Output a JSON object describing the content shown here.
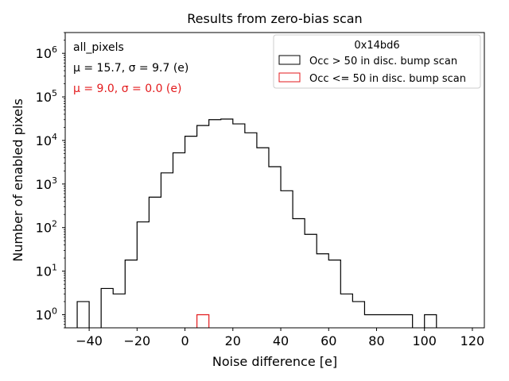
{
  "chart_data": {
    "type": "histogram",
    "title": "Results from zero-bias scan",
    "xlabel": "Noise difference [e]",
    "ylabel": "Number of enabled pixels",
    "xlim": [
      -50,
      125
    ],
    "ylim": [
      0.5,
      3000000
    ],
    "yscale": "log",
    "xticks": [
      -40,
      -20,
      0,
      20,
      40,
      60,
      80,
      100,
      120
    ],
    "xtick_labels": [
      "−40",
      "−20",
      "0",
      "20",
      "40",
      "60",
      "80",
      "100",
      "120"
    ],
    "yticks": [
      1,
      10,
      100,
      1000,
      10000,
      100000,
      1000000
    ],
    "ytick_labels": [
      {
        "base": "10",
        "exp": "0"
      },
      {
        "base": "10",
        "exp": "1"
      },
      {
        "base": "10",
        "exp": "2"
      },
      {
        "base": "10",
        "exp": "3"
      },
      {
        "base": "10",
        "exp": "4"
      },
      {
        "base": "10",
        "exp": "5"
      },
      {
        "base": "10",
        "exp": "6"
      }
    ],
    "annotations": {
      "selection": "all_pixels",
      "stats_all": "μ = 15.7, σ = 9.7 (e)",
      "stats_low": "μ = 9.0, σ = 0.0 (e)"
    },
    "legend": {
      "title": "0x14bd6",
      "placement": "top-right",
      "entries": [
        "Occ > 50 in disc. bump scan",
        "Occ <= 50 in disc. bump scan"
      ]
    },
    "series": [
      {
        "name": "Occ > 50 in disc. bump scan",
        "color": "#000000",
        "bin_edges": [
          -45,
          -40,
          -35,
          -30,
          -25,
          -20,
          -15,
          -10,
          -5,
          0,
          5,
          10,
          15,
          20,
          25,
          30,
          35,
          40,
          45,
          50,
          55,
          60,
          65,
          70,
          75,
          80,
          85,
          90,
          95,
          100,
          105
        ],
        "counts": [
          2,
          0,
          4,
          3,
          18,
          135,
          500,
          1800,
          5200,
          12500,
          22000,
          30000,
          31000,
          24000,
          15000,
          6800,
          2500,
          700,
          160,
          70,
          25,
          18,
          3,
          2,
          1,
          1,
          1,
          1,
          0,
          1
        ]
      },
      {
        "name": "Occ <= 50 in disc. bump scan",
        "color": "#e31a1c",
        "bin_edges": [
          5,
          10
        ],
        "counts": [
          1
        ]
      }
    ]
  }
}
